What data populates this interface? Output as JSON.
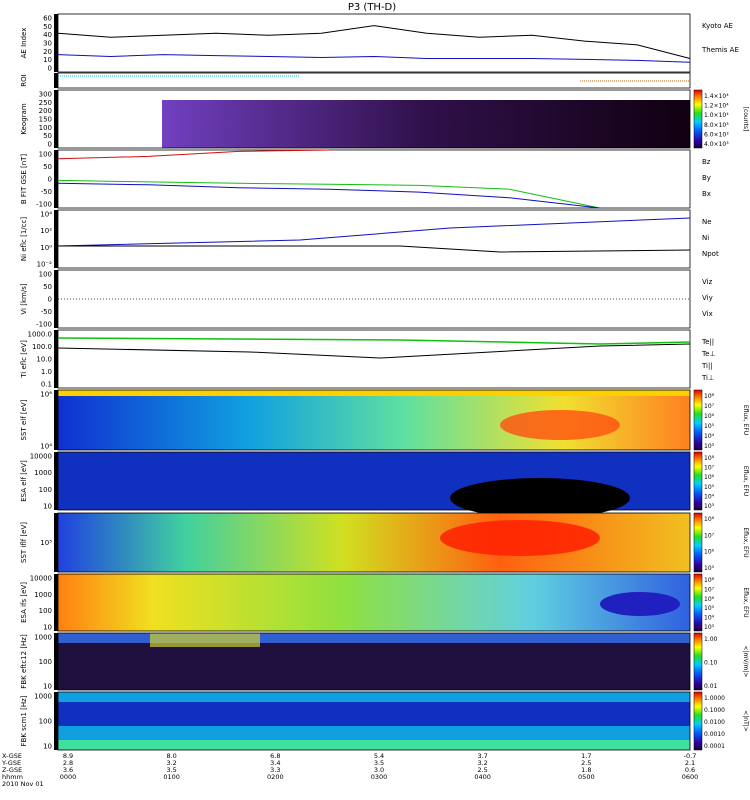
{
  "title": "P3 (TH-D)",
  "colors": {
    "black": "#000000",
    "blue": "#1010c0",
    "red": "#d01010",
    "green": "#10c010",
    "cyan": "#00bcd4"
  },
  "panels": [
    {
      "id": "ae",
      "ylabel": "AE Index",
      "ticks": [
        "60",
        "50",
        "40",
        "30",
        "20",
        "10",
        "0"
      ],
      "legend": [
        {
          "text": "Kyoto AE",
          "color": "#1010c0"
        },
        {
          "text": "Themis AE",
          "color": "#000000"
        }
      ]
    },
    {
      "id": "roi",
      "ylabel": "ROI",
      "ticks": [],
      "legend": []
    },
    {
      "id": "keogram",
      "ylabel": "Keogram",
      "ticks": [
        "300",
        "250",
        "200",
        "150",
        "100",
        "50",
        "0"
      ],
      "cbar": [
        "1.4×10⁴",
        "1.2×10⁴",
        "1.0×10⁴",
        "8.0×10³",
        "6.0×10³",
        "4.0×10³"
      ],
      "cbar_label": "[counts]"
    },
    {
      "id": "bfield",
      "ylabel": "B FIT GSE [nT]",
      "ticks": [
        "100",
        "50",
        "0",
        "-50",
        "-100"
      ],
      "legend": [
        {
          "text": "Bz",
          "color": "#d01010"
        },
        {
          "text": "By",
          "color": "#10c010"
        },
        {
          "text": "Bx",
          "color": "#1010c0"
        }
      ]
    },
    {
      "id": "ni",
      "ylabel": "Ni eflc [1/cc]",
      "ticks": [
        "10⁴",
        "10²",
        "10⁰",
        "10⁻²"
      ],
      "legend": [
        {
          "text": "Ne",
          "color": "#d01010"
        },
        {
          "text": "Ni",
          "color": "#000000"
        },
        {
          "text": "Npot",
          "color": "#1010c0"
        }
      ]
    },
    {
      "id": "vi",
      "ylabel": "Vi [km/s]",
      "ticks": [
        "100",
        "50",
        "0",
        "-50",
        "-100"
      ],
      "legend": [
        {
          "text": "Viz",
          "color": "#d01010"
        },
        {
          "text": "Viy",
          "color": "#10c010"
        },
        {
          "text": "Vix",
          "color": "#1010c0"
        }
      ]
    },
    {
      "id": "ti",
      "ylabel": "Ti eflc [eV]",
      "ticks": [
        "1000.0",
        "100.0",
        "10.0",
        "1.0",
        "0.1"
      ],
      "legend": [
        {
          "text": "Te||",
          "color": "#000000"
        },
        {
          "text": "Te⊥",
          "color": "#d01010"
        },
        {
          "text": "Ti||",
          "color": "#10c010"
        },
        {
          "text": "Ti⊥",
          "color": "#1010c0"
        }
      ]
    },
    {
      "id": "sst_e",
      "ylabel": "SST elf [eV]",
      "ticks": [
        "10⁶",
        "10⁴"
      ],
      "cbar": [
        "10⁸",
        "10⁷",
        "10⁶",
        "10⁵",
        "10⁴",
        "10³"
      ],
      "cbar_label": "Eflux, EFU"
    },
    {
      "id": "esa_e",
      "ylabel": "ESA elf [eV]",
      "ticks": [
        "10000",
        "1000",
        "100",
        "10"
      ],
      "cbar": [
        "10⁸",
        "10⁷",
        "10⁶",
        "10⁵",
        "10⁴",
        "10³"
      ],
      "cbar_label": "Eflux, EFU"
    },
    {
      "id": "sst_i",
      "ylabel": "SST iflf [eV]",
      "ticks": [
        "10⁵"
      ],
      "cbar": [
        "10⁸",
        "10⁷",
        "10⁶",
        "10⁵"
      ],
      "cbar_label": "Eflux, EFU"
    },
    {
      "id": "esa_i",
      "ylabel": "ESA ifs [eV]",
      "ticks": [
        "10000",
        "1000",
        "100",
        "10"
      ],
      "cbar": [
        "10⁸",
        "10⁷",
        "10⁶",
        "10⁵",
        "10⁴",
        "10³"
      ],
      "cbar_label": "Eflux, EFU"
    },
    {
      "id": "fbk_e",
      "ylabel": "FBK eftc12 [Hz]",
      "ticks": [
        "1000",
        "100",
        "10"
      ],
      "cbar": [
        "1.00",
        "0.10",
        "0.01"
      ],
      "cbar_label": "<|mV/m|>"
    },
    {
      "id": "fbk_b",
      "ylabel": "FBK scm1 [Hz]",
      "ticks": [
        "1000",
        "100",
        "10"
      ],
      "cbar": [
        "1.0000",
        "0.1000",
        "0.0100",
        "0.0010",
        "0.0001"
      ],
      "cbar_label": "<|nT|>"
    }
  ],
  "xaxis": {
    "row_labels": [
      "X-GSE",
      "Y-GSE",
      "Z-GSE",
      "hhmm",
      "2010 Nov 01"
    ],
    "columns": [
      {
        "x": "8.9",
        "y": "2.8",
        "z": "3.6",
        "t": "0000"
      },
      {
        "x": "8.0",
        "y": "3.2",
        "z": "3.5",
        "t": "0100"
      },
      {
        "x": "6.8",
        "y": "3.4",
        "z": "3.3",
        "t": "0200"
      },
      {
        "x": "5.4",
        "y": "3.5",
        "z": "3.0",
        "t": "0300"
      },
      {
        "x": "3.7",
        "y": "3.2",
        "z": "2.5",
        "t": "0400"
      },
      {
        "x": "1.7",
        "y": "2.5",
        "z": "1.8",
        "t": "0500"
      },
      {
        "x": "-0.7",
        "y": "2.1",
        "z": "0.6",
        "t": "0600"
      }
    ]
  },
  "chart_data": [
    {
      "type": "line",
      "title": "P3 (TH-D)",
      "ylabel": "AE Index",
      "ylim": [
        0,
        60
      ],
      "x": [
        "0000",
        "0030",
        "0100",
        "0130",
        "0200",
        "0230",
        "0300",
        "0330",
        "0400",
        "0430",
        "0500",
        "0530",
        "0600"
      ],
      "series": [
        {
          "name": "Themis AE",
          "values": [
            40,
            36,
            38,
            40,
            38,
            40,
            48,
            40,
            36,
            38,
            32,
            28,
            14
          ]
        },
        {
          "name": "Kyoto AE",
          "values": [
            18,
            16,
            18,
            17,
            16,
            15,
            16,
            14,
            14,
            14,
            13,
            12,
            10
          ]
        }
      ]
    },
    {
      "type": "line",
      "ylabel": "B FIT GSE [nT]",
      "ylim": [
        -100,
        100
      ],
      "x": [
        "0000",
        "0100",
        "0200",
        "0230",
        "0300",
        "0400",
        "0500",
        "0530"
      ],
      "series": [
        {
          "name": "Bz",
          "values": [
            70,
            78,
            95,
            100,
            null,
            null,
            null,
            null
          ]
        },
        {
          "name": "By",
          "values": [
            -5,
            -10,
            -15,
            -18,
            -22,
            -35,
            -100,
            null
          ]
        },
        {
          "name": "Bx",
          "values": [
            -15,
            -20,
            -30,
            -35,
            -45,
            -65,
            -100,
            null
          ]
        }
      ]
    },
    {
      "type": "heatmap",
      "ylabel": "SST elf [eV]",
      "title": ""
    }
  ]
}
